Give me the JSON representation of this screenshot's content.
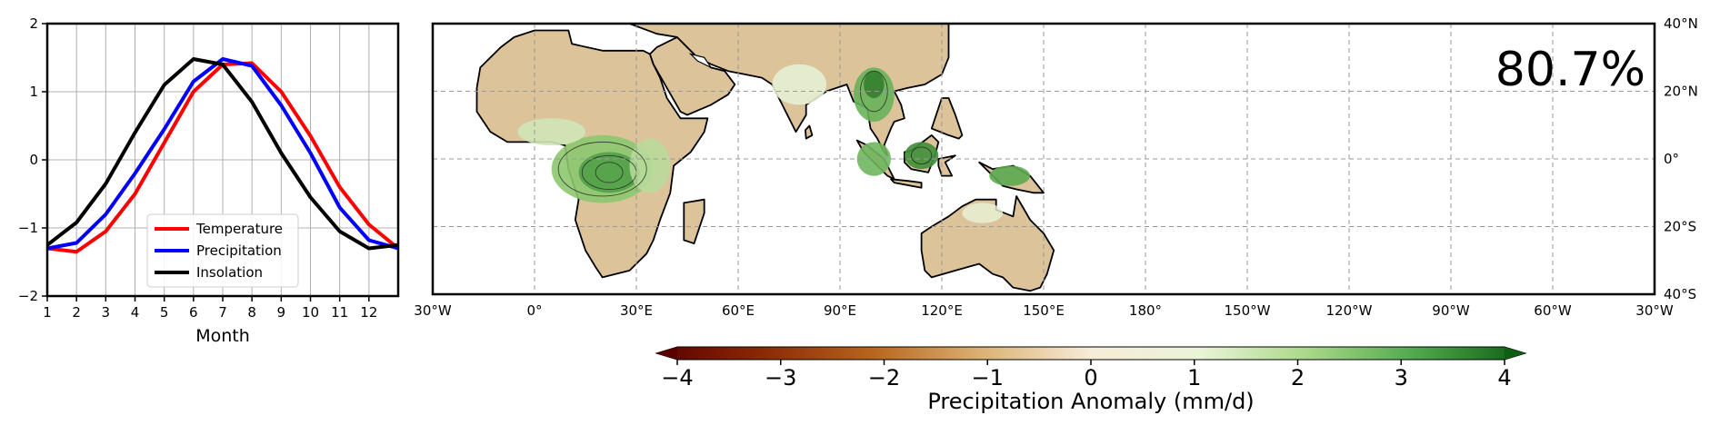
{
  "colors": {
    "temperature": "#ff0000",
    "precipitation": "#0000ff",
    "insolation": "#000000",
    "grid": "#b0b0b0",
    "land": "#dcc39a",
    "ocean": "#ffffff",
    "wet": "#2f8a2f",
    "colormap": [
      "#5a0000",
      "#8c2a06",
      "#b8661e",
      "#dcb274",
      "#f7ecd7",
      "#eaf4d8",
      "#a9d888",
      "#4fa84a",
      "#0e5e14"
    ]
  },
  "chart_data": [
    {
      "type": "line",
      "xlabel": "Month",
      "ylabel": "",
      "x": [
        1,
        2,
        3,
        4,
        5,
        6,
        7,
        8,
        9,
        10,
        11,
        12,
        13
      ],
      "xticks": [
        "1",
        "2",
        "3",
        "4",
        "5",
        "6",
        "7",
        "8",
        "9",
        "10",
        "11",
        "12"
      ],
      "xlim": [
        1,
        13
      ],
      "ylim": [
        -2,
        2
      ],
      "yticks": [
        "−2",
        "−1",
        "0",
        "1",
        "2"
      ],
      "grid": true,
      "legend_position": "lower center",
      "series": [
        {
          "name": "Temperature",
          "color": "#ff0000",
          "values": [
            -1.3,
            -1.35,
            -1.05,
            -0.5,
            0.25,
            1.0,
            1.4,
            1.42,
            1.0,
            0.35,
            -0.4,
            -0.95,
            -1.3
          ]
        },
        {
          "name": "Precipitation",
          "color": "#0000ff",
          "values": [
            -1.3,
            -1.22,
            -0.8,
            -0.2,
            0.45,
            1.15,
            1.48,
            1.38,
            0.8,
            0.1,
            -0.7,
            -1.18,
            -1.3
          ]
        },
        {
          "name": "Insolation",
          "color": "#000000",
          "values": [
            -1.25,
            -0.92,
            -0.35,
            0.4,
            1.1,
            1.48,
            1.4,
            0.85,
            0.1,
            -0.55,
            -1.05,
            -1.3,
            -1.25
          ]
        }
      ]
    },
    {
      "type": "heatmap",
      "title": "",
      "percent_label": "80.7%",
      "lon_range": [
        -30,
        330
      ],
      "lat_range": [
        -40,
        40
      ],
      "xticks": [
        "30°W",
        "0°",
        "30°E",
        "60°E",
        "90°E",
        "120°E",
        "150°E",
        "180°",
        "150°W",
        "120°W",
        "90°W",
        "60°W",
        "30°W"
      ],
      "yticks": [
        "40°N",
        "20°N",
        "0°",
        "20°S",
        "40°S"
      ],
      "grid": true,
      "colorbar": {
        "label": "Precipitation Anomaly (mm/d)",
        "ticks": [
          "−4",
          "−3",
          "−2",
          "−1",
          "0",
          "1",
          "2",
          "3",
          "4"
        ],
        "range": [
          -4,
          4
        ],
        "extend": "both"
      }
    }
  ]
}
